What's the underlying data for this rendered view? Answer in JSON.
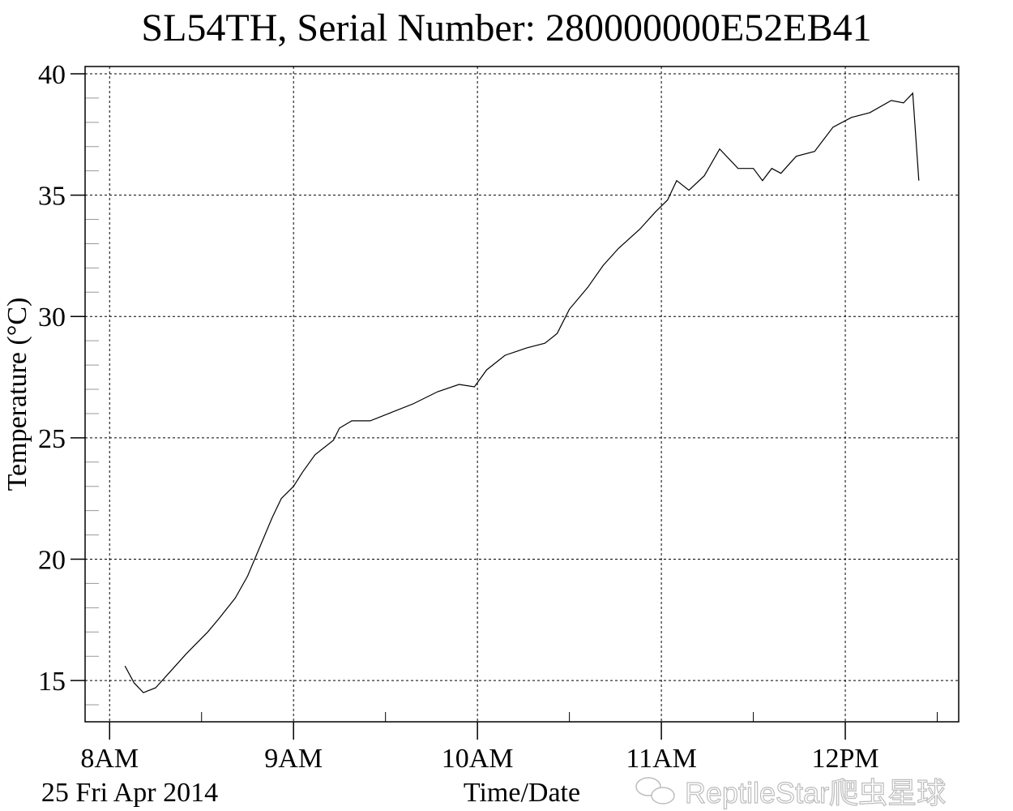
{
  "chart_data": {
    "type": "line",
    "title": "SL54TH,  Serial Number: 280000000E52EB41",
    "xlabel": "Time/Date",
    "ylabel": "Temperature (°C)",
    "date_label": "25 Fri Apr 2014",
    "x_ticks": [
      "8AM",
      "9AM",
      "10AM",
      "11AM",
      "12PM"
    ],
    "y_ticks": [
      15,
      20,
      25,
      30,
      35,
      40
    ],
    "xlim": [
      "07:52",
      "12:37"
    ],
    "ylim": [
      13.3,
      40.3
    ],
    "grid": true,
    "line_color": "#000000",
    "watermark": "ReptileStar爬虫星球",
    "series": [
      {
        "x": [
          "08:05",
          "08:08",
          "08:11",
          "08:15",
          "08:20",
          "08:25",
          "08:32",
          "08:36",
          "08:41",
          "08:45",
          "08:49",
          "08:53",
          "08:56",
          "09:00",
          "09:03",
          "09:07",
          "09:13",
          "09:15",
          "09:19",
          "09:25",
          "09:31",
          "09:39",
          "09:47",
          "09:54",
          "09:59",
          "10:03",
          "10:09",
          "10:16",
          "10:22",
          "10:26",
          "10:30",
          "10:36",
          "10:41",
          "10:46",
          "10:53",
          "10:58",
          "11:02",
          "11:05",
          "11:09",
          "11:14",
          "11:19",
          "11:25",
          "11:30",
          "11:33",
          "11:36",
          "11:39",
          "11:44",
          "11:50",
          "11:56",
          "12:02",
          "12:08",
          "12:15",
          "12:19",
          "12:22",
          "12:24"
        ],
        "y": [
          15.6,
          14.9,
          14.5,
          14.7,
          15.4,
          16.1,
          17.0,
          17.6,
          18.4,
          19.3,
          20.5,
          21.7,
          22.5,
          23.0,
          23.6,
          24.3,
          24.9,
          25.4,
          25.7,
          25.7,
          26.0,
          26.4,
          26.9,
          27.2,
          27.1,
          27.8,
          28.4,
          28.7,
          28.9,
          29.3,
          30.3,
          31.2,
          32.1,
          32.8,
          33.6,
          34.3,
          34.8,
          35.6,
          35.2,
          35.8,
          36.9,
          36.1,
          36.1,
          35.6,
          36.1,
          35.9,
          36.6,
          36.8,
          37.8,
          38.2,
          38.4,
          38.9,
          38.8,
          39.2,
          35.6
        ]
      }
    ]
  }
}
